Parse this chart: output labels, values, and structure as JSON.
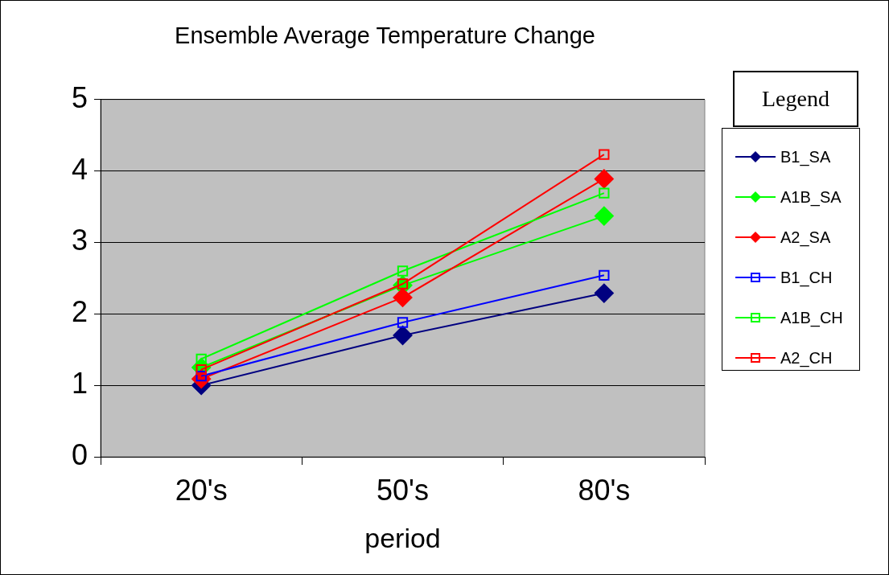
{
  "chart_data": {
    "type": "line",
    "title": "Ensemble Average Temperature Change",
    "xlabel": "period",
    "legend_title": "Legend",
    "legend": "right",
    "grid": "y",
    "categories": [
      "20's",
      "50's",
      "80's"
    ],
    "ylim": [
      0,
      5
    ],
    "yticks": [
      0,
      1,
      2,
      3,
      4,
      5
    ],
    "series": [
      {
        "name": "B1_SA",
        "color": "#000080",
        "marker": "diamond",
        "values": [
          1.0,
          1.7,
          2.29
        ]
      },
      {
        "name": "A1B_SA",
        "color": "#00ff00",
        "marker": "diamond",
        "values": [
          1.25,
          2.4,
          3.37
        ]
      },
      {
        "name": "A2_SA",
        "color": "#ff0000",
        "marker": "diamond",
        "values": [
          1.09,
          2.23,
          3.89
        ]
      },
      {
        "name": "B1_CH",
        "color": "#0000ff",
        "marker": "square",
        "values": [
          1.13,
          1.88,
          2.54
        ]
      },
      {
        "name": "A1B_CH",
        "color": "#00ff00",
        "marker": "square",
        "values": [
          1.37,
          2.6,
          3.69
        ]
      },
      {
        "name": "A2_CH",
        "color": "#ff0000",
        "marker": "square",
        "values": [
          1.22,
          2.42,
          4.23
        ]
      }
    ]
  }
}
